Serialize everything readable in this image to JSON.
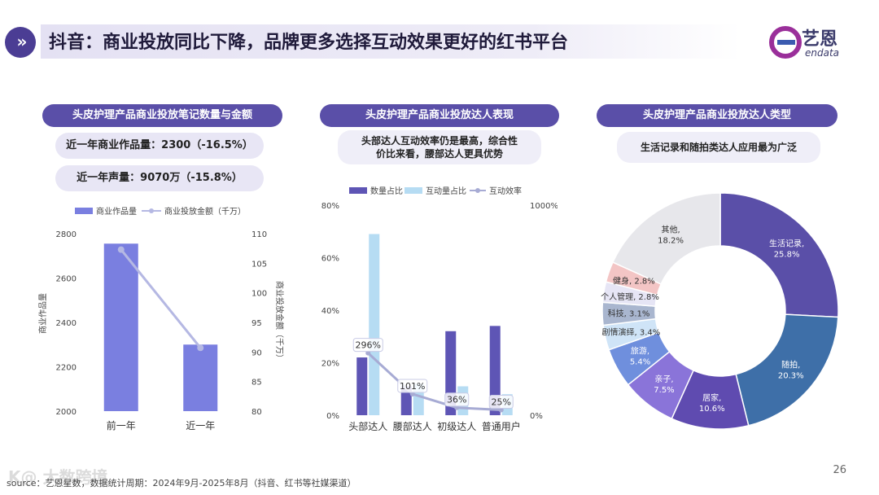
{
  "header": {
    "icon": "double-chevron-right-icon",
    "title": "抖音：商业投放同比下降，品牌更多选择互动效果更好的红书平台",
    "logo_cn": "艺恩",
    "logo_en": "endata"
  },
  "panel1": {
    "pill": "头皮护理产品商业投放笔记数量与金额",
    "stat1": "近一年商业作品量：2300（-16.5%）",
    "stat2": "近一年声量：9070万（-15.8%）"
  },
  "panel2": {
    "pill": "头皮护理产品商业投放达人表现",
    "note_line1": "头部达人互动效率仍是最高，综合性",
    "note_line2": "价比来看，腰部达人更具优势"
  },
  "panel3": {
    "pill": "头皮护理产品商业投放达人类型",
    "note": "生活记录和随拍类达人应用最为广泛"
  },
  "chart_data": [
    {
      "type": "bar",
      "title": "头皮护理产品商业投放笔记数量与金额",
      "categories": [
        "前一年",
        "近一年"
      ],
      "series": [
        {
          "name": "商业作品量",
          "values": [
            2755,
            2300
          ],
          "axis": "left",
          "color": "#7a7fe0"
        },
        {
          "name": "商业投放金额（千万）",
          "values": [
            107.3,
            90.7
          ],
          "axis": "right",
          "type": "line",
          "color": "#b5b8e3"
        }
      ],
      "ylabel": "商业作品量",
      "y2label": "商业投放金额（千万）",
      "ylim": [
        2000,
        2800
      ],
      "y2lim": [
        80,
        110
      ],
      "yticks": [
        "2000",
        "2200",
        "2400",
        "2600",
        "2800"
      ],
      "y2ticks": [
        "80",
        "85",
        "90",
        "95",
        "100",
        "105",
        "110"
      ]
    },
    {
      "type": "bar",
      "title": "头皮护理产品商业投放达人表现",
      "categories": [
        "头部达人",
        "腰部达人",
        "初级达人",
        "普通用户"
      ],
      "series": [
        {
          "name": "数量占比",
          "values": [
            22,
            11,
            32,
            34
          ],
          "axis": "left",
          "color": "#5e55b5"
        },
        {
          "name": "互动量占比",
          "values": [
            69,
            12,
            11,
            8
          ],
          "axis": "left",
          "color": "#b6dcf3"
        },
        {
          "name": "互动效率",
          "values": [
            296,
            101,
            36,
            25
          ],
          "axis": "right",
          "type": "line",
          "color": "#a7abd4"
        }
      ],
      "data_labels": [
        "296%",
        "101%",
        "36%",
        "25%"
      ],
      "ylim": [
        0,
        80
      ],
      "y2lim": [
        0,
        1000
      ],
      "yticks": [
        "0%",
        "20%",
        "40%",
        "60%",
        "80%"
      ],
      "y2ticks": [
        "0%",
        "1000%"
      ]
    },
    {
      "type": "pie",
      "title": "头皮护理产品商业投放达人类型",
      "slices": [
        {
          "label": "生活记录",
          "value": 25.8,
          "text": "25.8%",
          "color": "#5a4fa8"
        },
        {
          "label": "随拍",
          "value": 20.3,
          "text": "20.3%",
          "color": "#3e6fa8"
        },
        {
          "label": "居家",
          "value": 10.6,
          "text": "10.6%",
          "color": "#5f4bb0"
        },
        {
          "label": "亲子",
          "value": 7.5,
          "text": "7.5%",
          "color": "#8a74d9"
        },
        {
          "label": "旅游",
          "value": 5.4,
          "text": "5.4%",
          "color": "#6f8fdd"
        },
        {
          "label": "剧情演绎",
          "value": 3.4,
          "text": "3.4%",
          "color": "#cfe4f7"
        },
        {
          "label": "科技",
          "value": 3.1,
          "text": "3.1%",
          "color": "#a9b6cf"
        },
        {
          "label": "个人管理",
          "value": 2.8,
          "text": "2.8%",
          "color": "#e6e5f5"
        },
        {
          "label": "健身",
          "value": 2.8,
          "text": "2.8%",
          "color": "#f3c5c5"
        },
        {
          "label": "其他",
          "value": 18.2,
          "text": "18.2%",
          "color": "#e7e7eb"
        }
      ]
    }
  ],
  "footer": {
    "watermark": "K@ 大数跨境",
    "source": "source：艺恩星数，数据统计周期：2024年9月-2025年8月（抖音、红书等社媒渠道）",
    "page": "26"
  }
}
